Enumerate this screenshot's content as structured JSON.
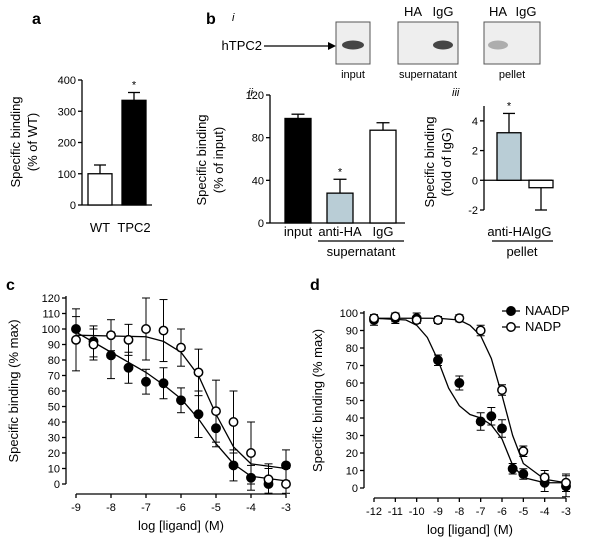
{
  "chart_data": [
    {
      "panel": "a",
      "type": "bar",
      "ylabel": "Specific binding (% of WT)",
      "ylabel_lines": [
        "Specific binding",
        "(% of WT)"
      ],
      "ylim": [
        0,
        400
      ],
      "yticks": [
        "0",
        "100",
        "200",
        "300",
        "400"
      ],
      "categories": [
        "WT",
        "TPC2"
      ],
      "values": [
        100,
        335
      ],
      "errors": [
        28,
        25
      ],
      "fills": [
        "#ffffff",
        "#000000"
      ],
      "annotations": [
        "",
        "*"
      ]
    },
    {
      "panel": "b",
      "sub": "i",
      "type": "blot",
      "protein_label": "hTPC2",
      "lanes": [
        {
          "label": "input",
          "headers": [],
          "bands": [
            0.9
          ]
        },
        {
          "label": "supernatant",
          "headers": [
            "HA",
            "IgG"
          ],
          "bands": [
            0.0,
            0.9
          ]
        },
        {
          "label": "pellet",
          "headers": [
            "HA",
            "IgG"
          ],
          "bands": [
            0.35,
            0.0
          ]
        }
      ]
    },
    {
      "panel": "b",
      "sub": "ii",
      "type": "bar",
      "ylabel": "Specific binding (% of input)",
      "ylabel_lines": [
        "Specific binding",
        "(% of input)"
      ],
      "ylim": [
        0,
        120
      ],
      "yticks": [
        "0",
        "40",
        "80",
        "120"
      ],
      "categories": [
        "input",
        "anti-HA",
        "IgG"
      ],
      "values": [
        98,
        28,
        87
      ],
      "errors": [
        4,
        13,
        7
      ],
      "fills": [
        "#000000",
        "#b9cdd6",
        "#ffffff"
      ],
      "annotations": [
        "",
        "*",
        ""
      ],
      "group_label": "supernatant"
    },
    {
      "panel": "b",
      "sub": "iii",
      "type": "bar",
      "ylabel": "Specific binding (fold of IgG)",
      "ylabel_lines": [
        "Specific binding",
        "(fold of IgG)"
      ],
      "ylim": [
        -2,
        5
      ],
      "yticks": [
        "-2",
        "0",
        "2",
        "4"
      ],
      "categories": [
        "anti-HA",
        "IgG"
      ],
      "values": [
        3.2,
        -0.5
      ],
      "errors": [
        1.3,
        1.5
      ],
      "fills": [
        "#b9cdd6",
        "#ffffff"
      ],
      "annotations": [
        "*",
        ""
      ],
      "group_label": "pellet"
    },
    {
      "panel": "c",
      "type": "scatter",
      "xlabel": "log [ligand] (M)",
      "ylabel": "Specific binding (% max)",
      "xlim": [
        -9,
        -3
      ],
      "ylim": [
        0,
        120
      ],
      "xticks": [
        "-9",
        "-8",
        "-7",
        "-6",
        "-5",
        "-4",
        "-3"
      ],
      "yticks": [
        "0",
        "10",
        "20",
        "30",
        "40",
        "50",
        "60",
        "70",
        "80",
        "90",
        "100",
        "110",
        "120"
      ],
      "series": [
        {
          "style": "filled",
          "x": [
            -9,
            -8.5,
            -8,
            -7.5,
            -7,
            -6.5,
            -6,
            -5.5,
            -5,
            -4.5,
            -4,
            -3.5,
            -3
          ],
          "y": [
            100,
            92,
            83,
            75,
            66,
            65,
            54,
            45,
            36,
            12,
            4,
            0,
            12
          ],
          "err": [
            8,
            10,
            15,
            10,
            8,
            10,
            8,
            15,
            12,
            10,
            8,
            10,
            10
          ],
          "fit": [
            [
              -9,
              98
            ],
            [
              -8,
              85
            ],
            [
              -7,
              72
            ],
            [
              -6.5,
              64
            ],
            [
              -6,
              55
            ],
            [
              -5.5,
              42
            ],
            [
              -5,
              26
            ],
            [
              -4.5,
              13
            ],
            [
              -4,
              5
            ],
            [
              -3,
              2
            ]
          ]
        },
        {
          "style": "open",
          "x": [
            -9,
            -8.5,
            -8,
            -7.5,
            -7,
            -6.5,
            -6,
            -5.5,
            -5,
            -4.5,
            -4,
            -3.5,
            -3
          ],
          "y": [
            93,
            90,
            96,
            93,
            100,
            99,
            88,
            72,
            47,
            40,
            20,
            3,
            0
          ],
          "err": [
            20,
            10,
            10,
            10,
            20,
            20,
            12,
            15,
            20,
            20,
            20,
            10,
            10
          ],
          "fit": [
            [
              -9,
              96
            ],
            [
              -7,
              95
            ],
            [
              -6.5,
              92
            ],
            [
              -6,
              85
            ],
            [
              -5.5,
              70
            ],
            [
              -5,
              45
            ],
            [
              -4.5,
              24
            ],
            [
              -4,
              13
            ],
            [
              -3,
              10
            ]
          ]
        }
      ]
    },
    {
      "panel": "d",
      "type": "scatter",
      "xlabel": "log [ligand] (M)",
      "ylabel": "Specific binding (% max)",
      "xlim": [
        -12,
        -3
      ],
      "ylim": [
        0,
        100
      ],
      "xticks": [
        "-12",
        "-11",
        "-10",
        "-9",
        "-8",
        "-7",
        "-6",
        "-5",
        "-4",
        "-3"
      ],
      "yticks": [
        "0",
        "10",
        "20",
        "30",
        "40",
        "50",
        "60",
        "70",
        "80",
        "90",
        "100"
      ],
      "legend": [
        "NAADP",
        "NADP"
      ],
      "legend_position": "top-right",
      "series": [
        {
          "name": "NAADP",
          "style": "filled",
          "x": [
            -12,
            -11,
            -10,
            -9,
            -8,
            -7,
            -6.5,
            -6,
            -5.5,
            -5,
            -4,
            -3
          ],
          "y": [
            96,
            97,
            97,
            73,
            60,
            38,
            41,
            34,
            11,
            8,
            3,
            1
          ],
          "err": [
            3,
            3,
            3,
            3,
            4,
            5,
            5,
            5,
            3,
            3,
            5,
            6
          ],
          "fit": [
            [
              -12,
              97
            ],
            [
              -10.5,
              96
            ],
            [
              -10,
              93
            ],
            [
              -9.5,
              86
            ],
            [
              -9,
              73
            ],
            [
              -8.5,
              57
            ],
            [
              -8,
              47
            ],
            [
              -7.5,
              42
            ],
            [
              -7,
              40
            ],
            [
              -6.5,
              36
            ],
            [
              -6,
              28
            ],
            [
              -5.5,
              13
            ],
            [
              -5,
              6
            ],
            [
              -4,
              3
            ],
            [
              -3,
              3
            ]
          ]
        },
        {
          "name": "NADP",
          "style": "open",
          "x": [
            -12,
            -11,
            -10,
            -9,
            -8,
            -7,
            -6,
            -5,
            -4,
            -3
          ],
          "y": [
            97,
            98,
            96,
            96,
            97,
            90,
            56,
            21,
            6,
            3
          ],
          "err": [
            2,
            3,
            2,
            2,
            2,
            3,
            3,
            3,
            4,
            5
          ],
          "fit": [
            [
              -12,
              97
            ],
            [
              -9,
              97
            ],
            [
              -8,
              96
            ],
            [
              -7.5,
              93
            ],
            [
              -7,
              87
            ],
            [
              -6.5,
              74
            ],
            [
              -6,
              53
            ],
            [
              -5.5,
              30
            ],
            [
              -5,
              14
            ],
            [
              -4,
              5
            ],
            [
              -3,
              3
            ]
          ]
        }
      ]
    }
  ]
}
